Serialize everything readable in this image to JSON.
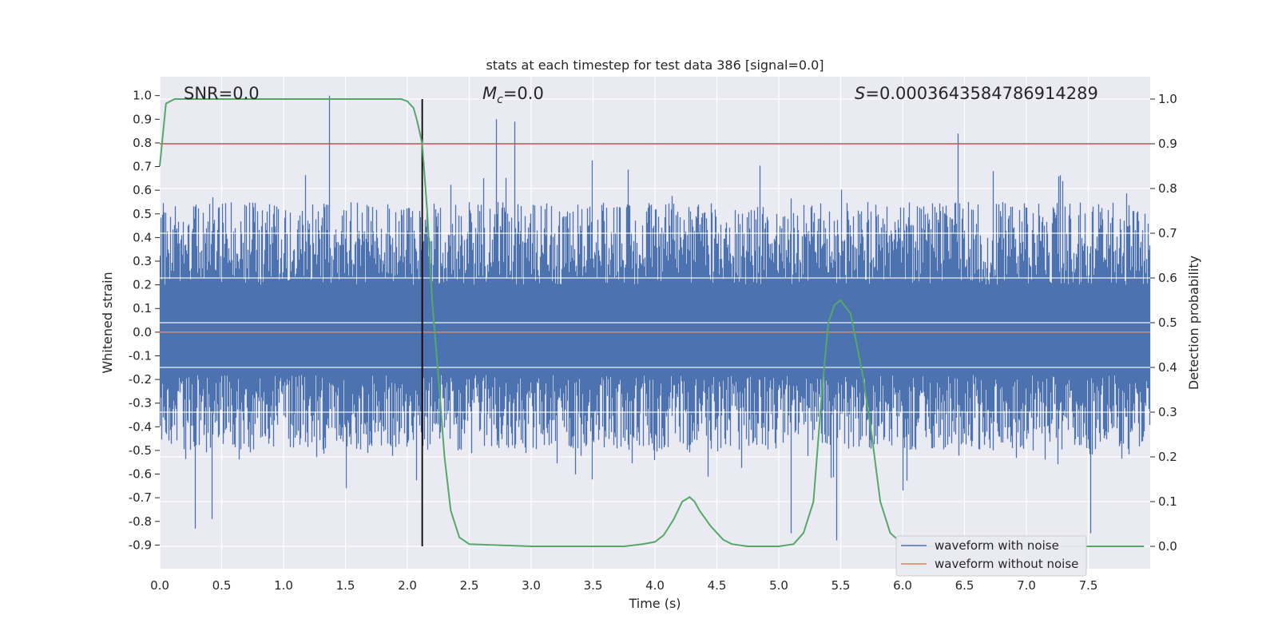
{
  "chart_data": {
    "type": "line",
    "title": "stats at each timestep for test data 386 [signal=0.0]",
    "xlabel": "Time (s)",
    "ylabel": "Whitened strain",
    "y2label": "Detection probability",
    "xlim": [
      0,
      8
    ],
    "ylim": [
      -1.0,
      1.08
    ],
    "y2lim": [
      -0.05,
      1.05
    ],
    "xticks": [
      "0.0",
      "0.5",
      "1.0",
      "1.5",
      "2.0",
      "2.5",
      "3.0",
      "3.5",
      "4.0",
      "4.5",
      "5.0",
      "5.5",
      "6.0",
      "6.5",
      "7.0",
      "7.5"
    ],
    "yticks": [
      "1.0",
      "0.9",
      "0.8",
      "0.7",
      "0.6",
      "0.5",
      "0.4",
      "0.3",
      "0.2",
      "0.1",
      "0.0",
      "-0.1",
      "-0.2",
      "-0.3",
      "-0.4",
      "-0.5",
      "-0.6",
      "-0.7",
      "-0.8",
      "-0.9"
    ],
    "y2ticks": [
      "1.0",
      "0.9",
      "0.8",
      "0.7",
      "0.6",
      "0.5",
      "0.4",
      "0.3",
      "0.2",
      "0.1",
      "0.0"
    ],
    "annotations": {
      "snr": "SNR=0.0",
      "mc_symbol": "M",
      "mc_sub": "c",
      "mc_value": "=0.0",
      "s_symbol": "S",
      "s_value": "=0.0003643584786914289"
    },
    "threshold": 0.9,
    "marker_time": 2.12,
    "noise_envelope": {
      "upper_typical": 0.55,
      "lower_typical": -0.5,
      "peaks": [
        {
          "t": 1.37,
          "v": 1.0
        },
        {
          "t": 2.72,
          "v": 0.9
        },
        {
          "t": 2.87,
          "v": 0.89
        },
        {
          "t": 6.45,
          "v": 0.84
        },
        {
          "t": 0.29,
          "v": -0.83
        },
        {
          "t": 0.42,
          "v": -0.79
        },
        {
          "t": 5.47,
          "v": -0.88
        },
        {
          "t": 5.1,
          "v": -0.85
        },
        {
          "t": 7.52,
          "v": -0.85
        }
      ]
    },
    "series": [
      {
        "name": "waveform with noise",
        "color": "#4c72b0"
      },
      {
        "name": "waveform without noise",
        "color": "#dd8452",
        "value": 0.0
      },
      {
        "name": "detection probability",
        "color": "#55a868",
        "t": [
          0.0,
          0.05,
          0.12,
          0.25,
          0.5,
          1.0,
          1.5,
          1.8,
          1.95,
          2.0,
          2.05,
          2.08,
          2.12,
          2.16,
          2.2,
          2.25,
          2.3,
          2.35,
          2.42,
          2.5,
          3.0,
          3.5,
          3.75,
          3.9,
          4.0,
          4.07,
          4.15,
          4.22,
          4.28,
          4.32,
          4.36,
          4.45,
          4.55,
          4.62,
          4.75,
          5.0,
          5.12,
          5.2,
          5.28,
          5.35,
          5.4,
          5.45,
          5.5,
          5.58,
          5.63,
          5.68,
          5.75,
          5.82,
          5.9,
          6.0,
          6.2,
          7.0,
          7.95
        ],
        "values": [
          0.85,
          0.99,
          1.0,
          1.0,
          1.0,
          1.0,
          1.0,
          1.0,
          1.0,
          0.995,
          0.98,
          0.95,
          0.9,
          0.75,
          0.55,
          0.38,
          0.2,
          0.08,
          0.02,
          0.005,
          0.0,
          0.0,
          0.0,
          0.005,
          0.01,
          0.025,
          0.06,
          0.1,
          0.11,
          0.1,
          0.08,
          0.045,
          0.015,
          0.005,
          0.0,
          0.0,
          0.005,
          0.03,
          0.1,
          0.35,
          0.5,
          0.54,
          0.55,
          0.52,
          0.45,
          0.38,
          0.25,
          0.1,
          0.03,
          0.005,
          0.0,
          0.0,
          0.0
        ]
      }
    ],
    "legend": {
      "position": "lower-right"
    }
  }
}
